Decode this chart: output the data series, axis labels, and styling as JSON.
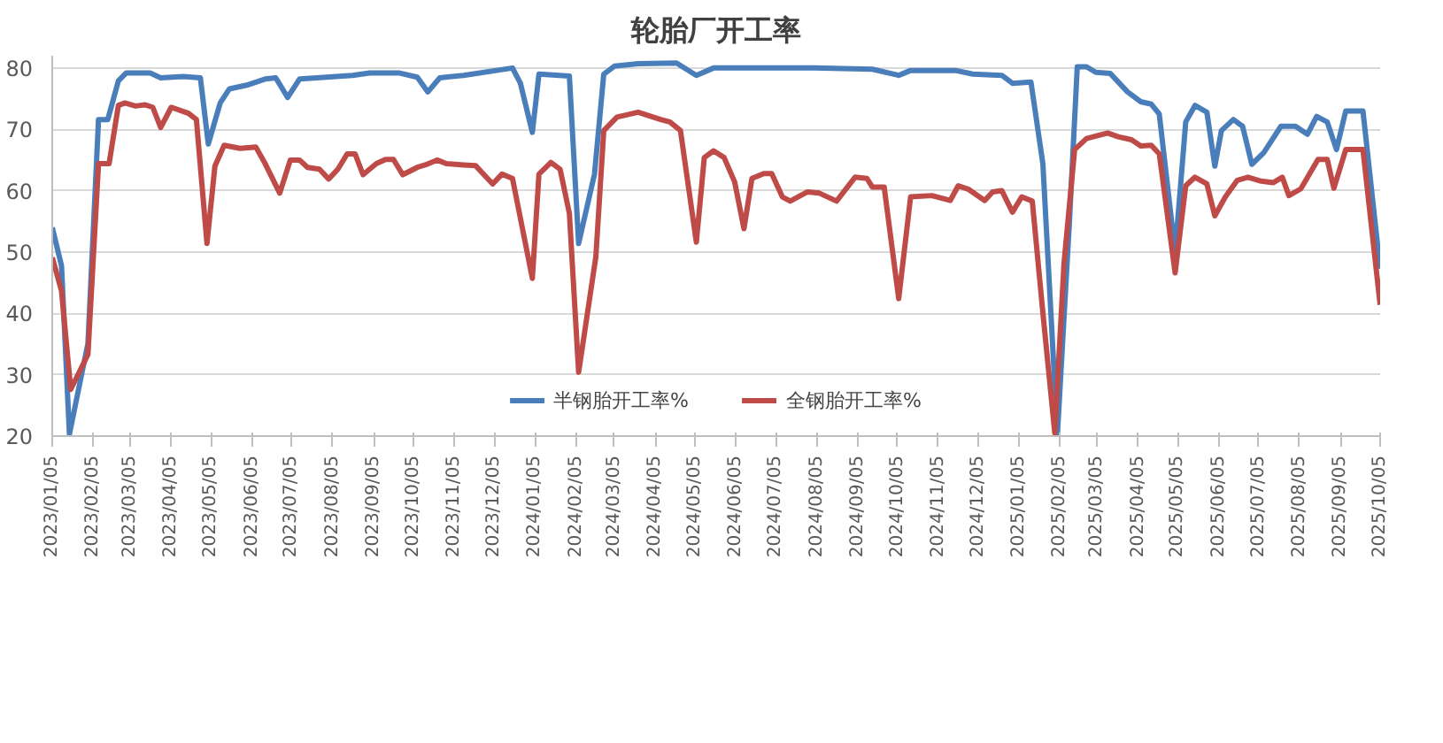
{
  "chart_data": {
    "type": "line",
    "title": "轮胎厂开工率",
    "xlim": [
      "2023-01-05",
      "2025-10-05"
    ],
    "xticks": [
      {
        "value": "2023-01-05",
        "label": "2023/01/05"
      },
      {
        "value": "2023-02-05",
        "label": "2023/02/05"
      },
      {
        "value": "2023-03-05",
        "label": "2023/03/05"
      },
      {
        "value": "2023-04-05",
        "label": "2023/04/05"
      },
      {
        "value": "2023-05-05",
        "label": "2023/05/05"
      },
      {
        "value": "2023-06-05",
        "label": "2023/06/05"
      },
      {
        "value": "2023-07-05",
        "label": "2023/07/05"
      },
      {
        "value": "2023-08-05",
        "label": "2023/08/05"
      },
      {
        "value": "2023-09-05",
        "label": "2023/09/05"
      },
      {
        "value": "2023-10-05",
        "label": "2023/10/05"
      },
      {
        "value": "2023-11-05",
        "label": "2023/11/05"
      },
      {
        "value": "2023-12-05",
        "label": "2023/12/05"
      },
      {
        "value": "2024-01-05",
        "label": "2024/01/05"
      },
      {
        "value": "2024-02-05",
        "label": "2024/02/05"
      },
      {
        "value": "2024-03-05",
        "label": "2024/03/05"
      },
      {
        "value": "2024-04-05",
        "label": "2024/04/05"
      },
      {
        "value": "2024-05-05",
        "label": "2024/05/05"
      },
      {
        "value": "2024-06-05",
        "label": "2024/06/05"
      },
      {
        "value": "2024-07-05",
        "label": "2024/07/05"
      },
      {
        "value": "2024-08-05",
        "label": "2024/08/05"
      },
      {
        "value": "2024-09-05",
        "label": "2024/09/05"
      },
      {
        "value": "2024-10-05",
        "label": "2024/10/05"
      },
      {
        "value": "2024-11-05",
        "label": "2024/11/05"
      },
      {
        "value": "2024-12-05",
        "label": "2024/12/05"
      },
      {
        "value": "2025-01-05",
        "label": "2025/01/05"
      },
      {
        "value": "2025-02-05",
        "label": "2025/02/05"
      },
      {
        "value": "2025-03-05",
        "label": "2025/03/05"
      },
      {
        "value": "2025-04-05",
        "label": "2025/04/05"
      },
      {
        "value": "2025-05-05",
        "label": "2025/05/05"
      },
      {
        "value": "2025-06-05",
        "label": "2025/06/05"
      },
      {
        "value": "2025-07-05",
        "label": "2025/07/05"
      },
      {
        "value": "2025-08-05",
        "label": "2025/08/05"
      },
      {
        "value": "2025-09-05",
        "label": "2025/09/05"
      },
      {
        "value": "2025-10-05",
        "label": "2025/10/05"
      }
    ],
    "ylim": [
      20,
      82
    ],
    "yticks": [
      20,
      30,
      40,
      50,
      60,
      70,
      80
    ],
    "grid": "y",
    "legend": "bottom",
    "line_style": "solid",
    "marker": "none",
    "series": [
      {
        "name": "半钢胎开工率%",
        "color": "#4a7ebb",
        "x": [
          "2023-01-05",
          "2023-01-12",
          "2023-01-18",
          "2023-02-01",
          "2023-02-09",
          "2023-02-16",
          "2023-02-24",
          "2023-03-02",
          "2023-03-20",
          "2023-03-28",
          "2023-04-14",
          "2023-04-27",
          "2023-05-03",
          "2023-05-12",
          "2023-05-19",
          "2023-06-01",
          "2023-06-15",
          "2023-06-23",
          "2023-07-02",
          "2023-07-11",
          "2023-07-24",
          "2023-08-20",
          "2023-09-02",
          "2023-09-24",
          "2023-10-08",
          "2023-10-16",
          "2023-10-25",
          "2023-11-12",
          "2023-12-19",
          "2023-12-25",
          "2024-01-03",
          "2024-01-08",
          "2024-01-31",
          "2024-02-07",
          "2024-02-19",
          "2024-02-26",
          "2024-03-05",
          "2024-03-23",
          "2024-04-21",
          "2024-05-06",
          "2024-05-19",
          "2024-08-03",
          "2024-09-16",
          "2024-10-06",
          "2024-10-15",
          "2024-11-18",
          "2024-12-01",
          "2024-12-23",
          "2024-12-31",
          "2025-01-14",
          "2025-01-23",
          "2025-02-03",
          "2025-02-12",
          "2025-02-18",
          "2025-02-25",
          "2025-03-04",
          "2025-03-15",
          "2025-03-28",
          "2025-04-07",
          "2025-04-15",
          "2025-04-21",
          "2025-05-03",
          "2025-05-11",
          "2025-05-18",
          "2025-05-27",
          "2025-06-02",
          "2025-06-07",
          "2025-06-16",
          "2025-06-23",
          "2025-06-30",
          "2025-07-09",
          "2025-07-22",
          "2025-08-02",
          "2025-08-11",
          "2025-08-18",
          "2025-08-26",
          "2025-09-02",
          "2025-09-09",
          "2025-09-22",
          "2025-10-05"
        ],
        "values": [
          54,
          47.8,
          20.3,
          35.1,
          71.6,
          71.6,
          77.9,
          79.2,
          79.2,
          78.4,
          78.6,
          78.4,
          67.6,
          74.3,
          76.6,
          77.2,
          78.2,
          78.4,
          75.2,
          78.2,
          78.4,
          78.8,
          79.2,
          79.2,
          78.5,
          76.1,
          78.4,
          78.8,
          80,
          77.5,
          69.5,
          79,
          78.7,
          51.4,
          62.7,
          79,
          80.3,
          80.7,
          80.8,
          78.8,
          80,
          80,
          79.8,
          78.8,
          79.6,
          79.6,
          79,
          78.8,
          77.5,
          77.7,
          64.4,
          20.3,
          54.6,
          80.2,
          80.2,
          79.3,
          79.1,
          76.1,
          74.5,
          74.1,
          72.5,
          50,
          71.2,
          73.9,
          72.8,
          64,
          69.8,
          71.6,
          70.5,
          64.3,
          66.2,
          70.5,
          70.5,
          69.2,
          72.1,
          71.2,
          66.7,
          73,
          73,
          47.3
        ]
      },
      {
        "name": "全钢胎开工率%",
        "color": "#be4b48",
        "x": [
          "2023-01-05",
          "2023-01-12",
          "2023-01-19",
          "2023-02-01",
          "2023-02-09",
          "2023-02-17",
          "2023-02-24",
          "2023-03-01",
          "2023-03-09",
          "2023-03-16",
          "2023-03-22",
          "2023-03-28",
          "2023-04-05",
          "2023-04-18",
          "2023-04-24",
          "2023-05-02",
          "2023-05-08",
          "2023-05-15",
          "2023-05-27",
          "2023-06-08",
          "2023-06-15",
          "2023-06-26",
          "2023-07-04",
          "2023-07-11",
          "2023-07-17",
          "2023-07-26",
          "2023-08-02",
          "2023-08-09",
          "2023-08-16",
          "2023-08-22",
          "2023-08-28",
          "2023-09-07",
          "2023-09-14",
          "2023-09-20",
          "2023-09-27",
          "2023-10-08",
          "2023-10-14",
          "2023-10-23",
          "2023-10-30",
          "2023-11-12",
          "2023-11-21",
          "2023-12-04",
          "2023-12-11",
          "2023-12-19",
          "2024-01-03",
          "2024-01-08",
          "2024-01-17",
          "2024-01-24",
          "2024-01-31",
          "2024-02-07",
          "2024-02-20",
          "2024-02-26",
          "2024-03-07",
          "2024-03-23",
          "2024-04-09",
          "2024-04-16",
          "2024-04-24",
          "2024-05-06",
          "2024-05-12",
          "2024-05-19",
          "2024-05-27",
          "2024-06-04",
          "2024-06-11",
          "2024-06-17",
          "2024-06-26",
          "2024-07-02",
          "2024-07-10",
          "2024-07-16",
          "2024-07-29",
          "2024-08-07",
          "2024-08-20",
          "2024-09-03",
          "2024-09-12",
          "2024-09-16",
          "2024-09-25",
          "2024-10-06",
          "2024-10-15",
          "2024-10-31",
          "2024-11-14",
          "2024-11-20",
          "2024-11-28",
          "2024-12-10",
          "2024-12-16",
          "2024-12-23",
          "2024-12-31",
          "2025-01-07",
          "2025-01-15",
          "2025-01-23",
          "2025-02-01",
          "2025-02-08",
          "2025-02-16",
          "2025-02-25",
          "2025-03-04",
          "2025-03-13",
          "2025-03-21",
          "2025-03-31",
          "2025-04-07",
          "2025-04-15",
          "2025-04-21",
          "2025-05-03",
          "2025-05-11",
          "2025-05-18",
          "2025-05-27",
          "2025-06-02",
          "2025-06-10",
          "2025-06-19",
          "2025-06-27",
          "2025-07-06",
          "2025-07-16",
          "2025-07-23",
          "2025-07-28",
          "2025-08-06",
          "2025-08-19",
          "2025-08-26",
          "2025-08-31",
          "2025-09-09",
          "2025-09-22",
          "2025-10-05"
        ],
        "values": [
          49.1,
          43.7,
          27.6,
          33.3,
          64.4,
          64.4,
          73.9,
          74.3,
          73.8,
          74,
          73.6,
          70.3,
          73.6,
          72.6,
          71.6,
          51.4,
          64,
          67.4,
          66.9,
          67.1,
          64.4,
          59.6,
          65,
          65,
          63.8,
          63.5,
          61.9,
          63.5,
          66,
          66,
          62.6,
          64.4,
          65.1,
          65.1,
          62.6,
          63.8,
          64.2,
          65,
          64.4,
          64.2,
          64.1,
          61.1,
          62.7,
          62,
          45.7,
          62.7,
          64.6,
          63.5,
          56.3,
          30.4,
          49.2,
          69.8,
          72,
          72.8,
          71.6,
          71.2,
          69.8,
          51.6,
          65.4,
          66.5,
          65.4,
          61.4,
          53.8,
          62,
          62.8,
          62.8,
          59,
          58.3,
          59.8,
          59.6,
          58.3,
          62.2,
          62,
          60.6,
          60.6,
          42.4,
          59,
          59.2,
          58.4,
          60.8,
          60.2,
          58.4,
          59.8,
          60,
          56.5,
          59,
          58.3,
          40.1,
          20.5,
          48.2,
          66.7,
          68.5,
          68.9,
          69.4,
          68.8,
          68.3,
          67.3,
          67.4,
          66,
          46.6,
          60.8,
          62.2,
          61.1,
          55.9,
          59,
          61.7,
          62.2,
          61.6,
          61.3,
          62.2,
          59.2,
          60.3,
          65.1,
          65.1,
          60.4,
          66.7,
          66.7,
          41.4
        ]
      }
    ]
  }
}
